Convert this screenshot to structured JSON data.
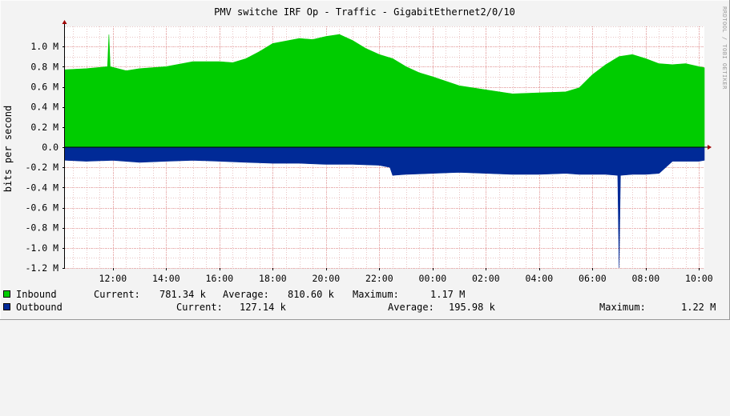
{
  "chart_data": {
    "type": "area",
    "title": "PMV switche IRF Op - Traffic - GigabitEthernet2/0/10",
    "ylabel": "bits per second",
    "watermark": "RRDTOOL / TOBI OETIKER",
    "ylim": [
      -1.2,
      1.2
    ],
    "y_unit": "M",
    "y_ticks": [
      "1.0 M",
      "0.8 M",
      "0.6 M",
      "0.4 M",
      "0.2 M",
      "0.0",
      "-0.2 M",
      "-0.4 M",
      "-0.6 M",
      "-0.8 M",
      "-1.0 M",
      "-1.2 M"
    ],
    "y_tick_values": [
      1.0,
      0.8,
      0.6,
      0.4,
      0.2,
      0.0,
      -0.2,
      -0.4,
      -0.6,
      -0.8,
      -1.0,
      -1.2
    ],
    "x_ticks": [
      "12:00",
      "14:00",
      "16:00",
      "18:00",
      "20:00",
      "22:00",
      "00:00",
      "02:00",
      "04:00",
      "06:00",
      "08:00",
      "10:00"
    ],
    "x_tick_hours": [
      12,
      14,
      16,
      18,
      20,
      22,
      24,
      26,
      28,
      30,
      32,
      34
    ],
    "x_range_hours": [
      10.2,
      34.2
    ],
    "grid": true,
    "series": [
      {
        "name": "Inbound",
        "color": "#00cc00",
        "x": [
          10.2,
          11,
          11.8,
          11.85,
          11.9,
          12.5,
          13,
          14,
          15,
          16,
          16.5,
          17,
          17.5,
          18,
          19,
          19.5,
          20,
          20.5,
          21,
          21.5,
          22,
          22.5,
          23,
          23.5,
          24,
          25,
          26,
          27,
          28,
          29,
          29.5,
          30,
          30.5,
          31,
          31.5,
          32,
          32.5,
          33,
          33.5,
          34,
          34.2
        ],
        "values": [
          0.77,
          0.78,
          0.8,
          1.12,
          0.8,
          0.76,
          0.78,
          0.8,
          0.85,
          0.85,
          0.84,
          0.88,
          0.95,
          1.03,
          1.08,
          1.07,
          1.1,
          1.12,
          1.06,
          0.98,
          0.92,
          0.88,
          0.8,
          0.74,
          0.7,
          0.61,
          0.57,
          0.53,
          0.54,
          0.55,
          0.59,
          0.72,
          0.82,
          0.9,
          0.92,
          0.88,
          0.83,
          0.82,
          0.83,
          0.8,
          0.79
        ]
      },
      {
        "name": "Outbound",
        "color": "#002a97",
        "x": [
          10.2,
          11,
          12,
          13,
          14,
          15,
          16,
          17,
          18,
          19,
          20,
          21,
          22,
          22.4,
          22.5,
          23,
          24,
          25,
          26,
          27,
          28,
          29,
          29.5,
          30,
          30.5,
          30.95,
          31.0,
          31.05,
          31.5,
          32,
          32.5,
          33,
          33.5,
          34,
          34.2
        ],
        "values": [
          -0.13,
          -0.14,
          -0.13,
          -0.15,
          -0.14,
          -0.13,
          -0.14,
          -0.15,
          -0.16,
          -0.16,
          -0.17,
          -0.17,
          -0.18,
          -0.2,
          -0.28,
          -0.27,
          -0.26,
          -0.25,
          -0.26,
          -0.27,
          -0.27,
          -0.26,
          -0.27,
          -0.27,
          -0.27,
          -0.28,
          -1.2,
          -0.28,
          -0.27,
          -0.27,
          -0.26,
          -0.14,
          -0.14,
          -0.14,
          -0.13
        ]
      }
    ]
  },
  "legend": {
    "inbound": {
      "label": "Inbound",
      "current_label": "Current:",
      "current": "781.34 k",
      "average_label": "Average:",
      "average": "810.60 k",
      "maximum_label": "Maximum:",
      "maximum": "1.17 M"
    },
    "outbound": {
      "label": "Outbound",
      "current_label": "Current:",
      "current": "127.14 k",
      "average_label": "Average:",
      "average": "195.98 k",
      "maximum_label": "Maximum:",
      "maximum": "1.22 M"
    }
  }
}
